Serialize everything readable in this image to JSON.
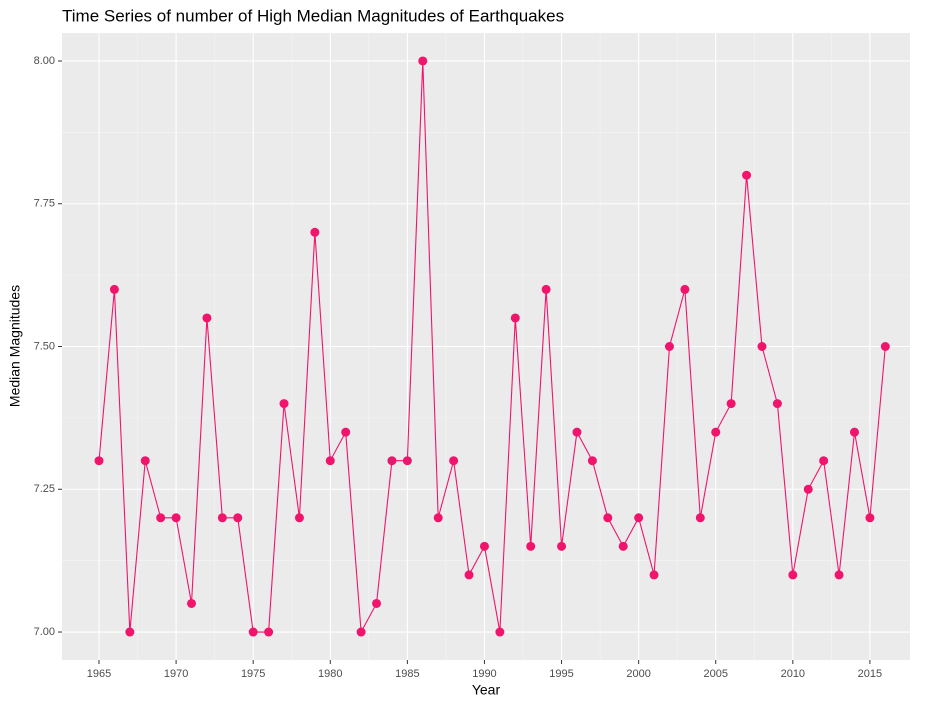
{
  "chart_data": {
    "type": "line",
    "title": "Time Series of number of High Median Magnitudes of Earthquakes",
    "x_label": "Year",
    "y_label": "Median Magnitudes",
    "x": [
      1965,
      1966,
      1967,
      1968,
      1969,
      1970,
      1971,
      1972,
      1973,
      1974,
      1975,
      1976,
      1977,
      1978,
      1979,
      1980,
      1981,
      1982,
      1983,
      1984,
      1985,
      1986,
      1987,
      1988,
      1989,
      1990,
      1991,
      1992,
      1993,
      1994,
      1995,
      1996,
      1997,
      1998,
      1999,
      2000,
      2001,
      2002,
      2003,
      2004,
      2005,
      2006,
      2007,
      2008,
      2009,
      2010,
      2011,
      2012,
      2013,
      2014,
      2015,
      2016
    ],
    "series": [
      {
        "color": "#f0146c",
        "values": [
          7.3,
          7.6,
          7.0,
          7.3,
          7.2,
          7.2,
          7.05,
          7.55,
          7.2,
          7.2,
          7.0,
          7.0,
          7.4,
          7.2,
          7.7,
          7.3,
          7.35,
          7.0,
          7.05,
          7.3,
          7.3,
          8.0,
          7.2,
          7.3,
          7.1,
          7.15,
          7.0,
          7.55,
          7.15,
          7.6,
          7.15,
          7.35,
          7.3,
          7.2,
          7.15,
          7.2,
          7.1,
          7.5,
          7.6,
          7.2,
          7.35,
          7.4,
          7.8,
          7.5,
          7.4,
          7.1,
          7.25,
          7.3,
          7.1,
          7.35,
          7.2,
          7.5
        ]
      }
    ],
    "xlim": [
      1962.6,
      2017.6
    ],
    "xticks": [
      1965,
      1970,
      1975,
      1980,
      1985,
      1990,
      1995,
      2000,
      2005,
      2010,
      2015
    ],
    "ylim": [
      6.951,
      8.049
    ],
    "yticks": [
      {
        "value": 7,
        "label": "7.00"
      },
      7.25,
      {
        "value": 7.5,
        "label": "7.50"
      },
      7.75,
      {
        "value": 8,
        "label": "8.00"
      }
    ],
    "grid": true
  }
}
